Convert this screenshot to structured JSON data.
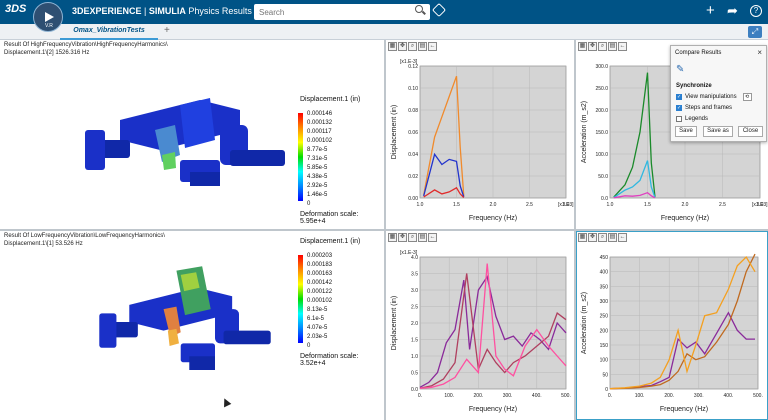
{
  "header": {
    "logo": "3DS",
    "compass_version": "V.R",
    "brand": "3DEXPERIENCE",
    "separator": " | ",
    "product": "SIMULIA",
    "app": " Physics Results",
    "search_placeholder": "Search"
  },
  "tabs": [
    {
      "label": "Omax_VibrationTests"
    }
  ],
  "tab_add": "+",
  "top_right_icons": [
    "plus-icon",
    "share-icon",
    "help-icon"
  ],
  "sim_top": {
    "title_line1": "Result Of HighFrequencyVibration\\HighFrequencyHarmonics\\",
    "title_line2": "Displacement.1\\[2]      1526.316 Hz",
    "legend_title": "Displacement.1 (in)",
    "legend_values": [
      "0.000146",
      "0.000132",
      "0.000117",
      "0.000102",
      "8.77e-5",
      "7.31e-5",
      "5.85e-5",
      "4.38e-5",
      "2.92e-5",
      "1.46e-5",
      "0"
    ],
    "deformation": "Deformation scale: 5.95e+4"
  },
  "sim_bottom": {
    "title_line1": "Result Of LowFrequencyVibration\\LowFrequencyHarmonics\\",
    "title_line2": "Displacement.1\\[1]      53.526 Hz",
    "legend_title": "Displacement.1 (in)",
    "legend_values": [
      "0.000203",
      "0.000183",
      "0.000163",
      "0.000142",
      "0.000122",
      "0.000102",
      "8.13e-5",
      "6.1e-5",
      "4.07e-5",
      "2.03e-5",
      "0"
    ],
    "deformation": "Deformation scale: 3.52e+4"
  },
  "compare": {
    "title": "Compare Results",
    "close": "×",
    "section": "Synchronize",
    "options": [
      {
        "label": "View manipulations",
        "checked": true
      },
      {
        "label": "Steps and frames",
        "checked": true
      },
      {
        "label": "Legends",
        "checked": false
      }
    ],
    "buttons": [
      "Save",
      "Save as",
      "Close"
    ]
  },
  "chart_data": [
    {
      "type": "line",
      "multiplier_y": "[x1.E-3]",
      "multiplier_x": "[x1.E3]",
      "xlabel": "Frequency (Hz)",
      "ylabel": "Displacement (in)",
      "xlim": [
        1.0,
        3.0
      ],
      "ylim": [
        0,
        0.13
      ],
      "xticks": [
        "1.0",
        "1.5",
        "2.0",
        "2.5",
        "3.0"
      ],
      "yticks": [
        "0.00",
        "0.02",
        "0.04",
        "0.06",
        "0.08",
        "0.10",
        "0.12"
      ],
      "series": [
        {
          "color": "#f08a2c",
          "x": [
            1.05,
            1.2,
            1.3,
            1.4,
            1.5,
            1.55,
            1.6
          ],
          "y": [
            0.003,
            0.06,
            0.08,
            0.1,
            0.12,
            0.05,
            0.002
          ]
        },
        {
          "color": "#2233cc",
          "x": [
            1.05,
            1.2,
            1.3,
            1.4,
            1.5,
            1.55,
            1.6
          ],
          "y": [
            0.002,
            0.043,
            0.033,
            0.038,
            0.036,
            0.012,
            0.001
          ]
        },
        {
          "color": "#e02a2a",
          "x": [
            1.05,
            1.2,
            1.3,
            1.4,
            1.5,
            1.55,
            1.6
          ],
          "y": [
            0.001,
            0.008,
            0.004,
            0.006,
            0.01,
            0.004,
            0.0005
          ]
        }
      ]
    },
    {
      "type": "line",
      "multiplier_x": "[x1.E3]",
      "xlabel": "Frequency (Hz)",
      "ylabel": "Acceleration (m_s2)",
      "xlim": [
        1.0,
        3.0
      ],
      "ylim": [
        0,
        300
      ],
      "xticks": [
        "1.0",
        "1.5",
        "2.0",
        "2.5",
        "3.0"
      ],
      "yticks": [
        "0.0",
        "50.0",
        "100.0",
        "150.0",
        "200.0",
        "250.0",
        "300.0"
      ],
      "series": [
        {
          "color": "#1a8a2a",
          "x": [
            1.05,
            1.2,
            1.3,
            1.4,
            1.5,
            1.55,
            1.6
          ],
          "y": [
            2,
            30,
            70,
            150,
            285,
            80,
            2
          ]
        },
        {
          "color": "#30b8e0",
          "x": [
            1.05,
            1.2,
            1.3,
            1.4,
            1.5,
            1.55,
            1.6
          ],
          "y": [
            1,
            18,
            25,
            40,
            85,
            25,
            1
          ]
        },
        {
          "color": "#e040c0",
          "x": [
            1.05,
            1.2,
            1.3,
            1.4,
            1.5,
            1.55,
            1.6
          ],
          "y": [
            0.5,
            5,
            4,
            6,
            12,
            5,
            0.5
          ]
        }
      ]
    },
    {
      "type": "line",
      "multiplier_y": "[x1.E-3]",
      "xlabel": "Frequency (Hz)",
      "ylabel": "Displacement (in)",
      "xlim": [
        0,
        500
      ],
      "ylim": [
        0,
        4.0
      ],
      "xticks": [
        "0.",
        "100.",
        "200.",
        "300.",
        "400.",
        "500."
      ],
      "yticks": [
        "0.0",
        "0.5",
        "1.0",
        "1.5",
        "2.0",
        "2.5",
        "3.0",
        "3.5",
        "4.0"
      ],
      "series": [
        {
          "color": "#8a2a9a",
          "x": [
            0,
            30,
            60,
            90,
            120,
            150,
            170,
            200,
            230,
            260,
            290,
            320,
            350,
            380,
            410,
            440,
            470,
            500
          ],
          "y": [
            0.05,
            0.2,
            0.5,
            1.4,
            1.8,
            3.3,
            1.2,
            3.0,
            3.4,
            2.2,
            1.5,
            1.6,
            1.3,
            1.7,
            1.5,
            1.2,
            2.0,
            1.7
          ]
        },
        {
          "color": "#b04060",
          "x": [
            0,
            40,
            80,
            120,
            160,
            200,
            230,
            260,
            290,
            320,
            360,
            400,
            440,
            470,
            500
          ],
          "y": [
            0.02,
            0.1,
            0.3,
            0.8,
            3.5,
            0.6,
            1.2,
            0.8,
            0.5,
            0.8,
            1.0,
            1.3,
            1.6,
            2.3,
            2.1
          ]
        },
        {
          "color": "#ff50a0",
          "x": [
            0,
            40,
            80,
            120,
            160,
            200,
            230,
            260,
            290,
            320,
            360,
            400,
            440,
            470,
            500
          ],
          "y": [
            0.02,
            0.05,
            0.15,
            0.35,
            0.9,
            0.5,
            3.8,
            1.0,
            0.6,
            0.4,
            1.3,
            1.8,
            1.3,
            1.0,
            0.7
          ]
        }
      ]
    },
    {
      "type": "line",
      "xlabel": "Frequency (Hz)",
      "ylabel": "Acceleration (m_s2)",
      "xlim": [
        0,
        500
      ],
      "ylim": [
        0,
        450
      ],
      "xticks": [
        "0.",
        "100.",
        "200.",
        "300.",
        "400.",
        "500."
      ],
      "yticks": [
        "0",
        "50",
        "100",
        "150",
        "200",
        "250",
        "300",
        "350",
        "400",
        "450"
      ],
      "series": [
        {
          "color": "#8a2a9a",
          "x": [
            0,
            50,
            100,
            140,
            170,
            200,
            230,
            260,
            290,
            320,
            360,
            400,
            430,
            460,
            490
          ],
          "y": [
            1,
            3,
            8,
            12,
            25,
            40,
            170,
            140,
            160,
            120,
            190,
            260,
            200,
            170,
            170
          ]
        },
        {
          "color": "#c06a20",
          "x": [
            0,
            50,
            100,
            140,
            170,
            200,
            230,
            260,
            290,
            320,
            360,
            400,
            430,
            460,
            490
          ],
          "y": [
            1,
            2,
            5,
            10,
            15,
            30,
            60,
            120,
            100,
            110,
            160,
            220,
            300,
            400,
            460
          ]
        },
        {
          "color": "#f4a020",
          "x": [
            0,
            50,
            100,
            140,
            170,
            200,
            230,
            260,
            290,
            320,
            360,
            400,
            430,
            460,
            490
          ],
          "y": [
            1,
            4,
            10,
            20,
            40,
            100,
            200,
            60,
            150,
            250,
            260,
            340,
            420,
            450,
            400
          ]
        }
      ]
    }
  ]
}
